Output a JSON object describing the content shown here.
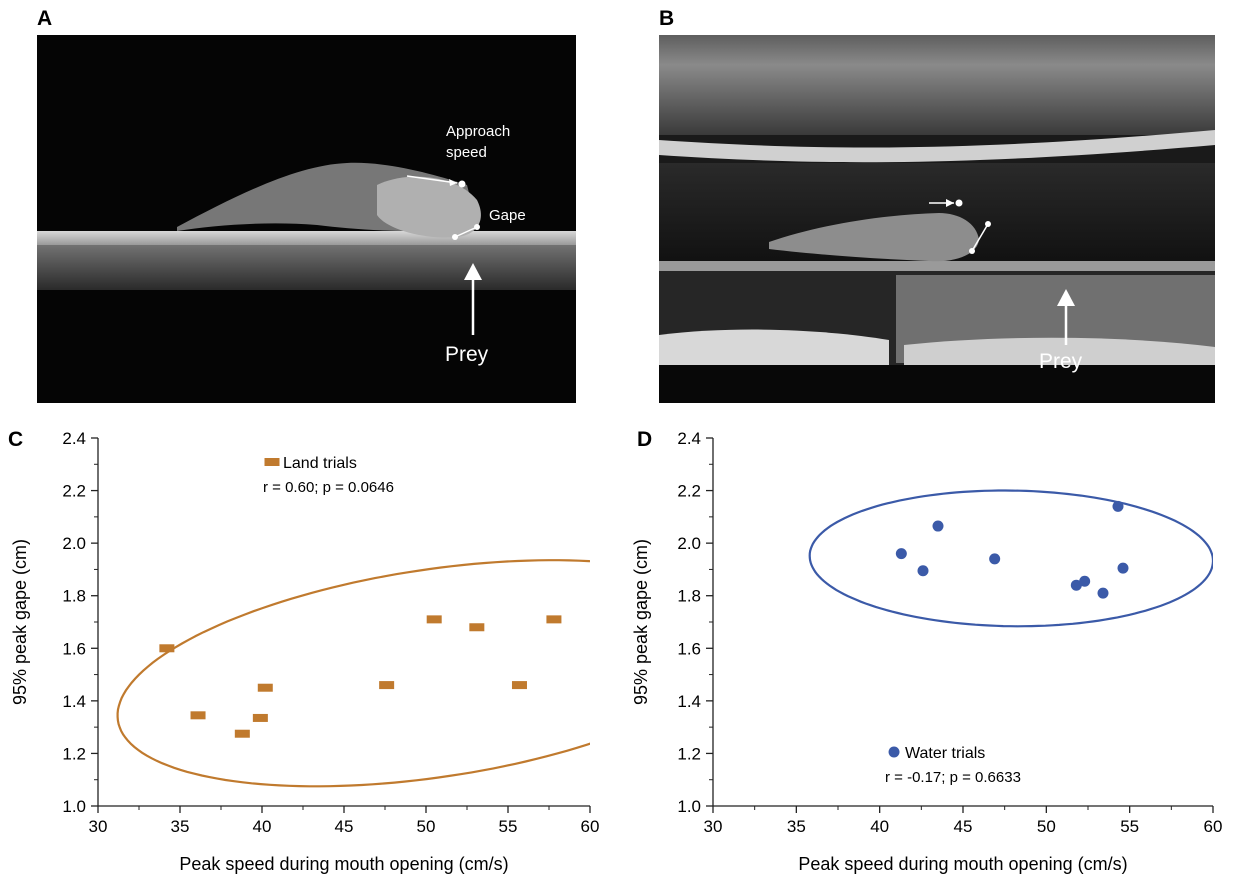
{
  "panels": {
    "a": {
      "letter": "A",
      "labels": {
        "approach": "Approach",
        "speed": "speed",
        "gape": "Gape",
        "prey": "Prey"
      }
    },
    "b": {
      "letter": "B",
      "labels": {
        "prey": "Prey"
      }
    }
  },
  "chart_data": [
    {
      "panel": "C",
      "type": "scatter",
      "xlabel": "Peak speed during mouth opening (cm/s)",
      "ylabel": "95% peak gape (cm)",
      "xlim": [
        30,
        60
      ],
      "ylim": [
        1.0,
        2.4
      ],
      "xticks": [
        "30",
        "35",
        "40",
        "45",
        "50",
        "55",
        "60"
      ],
      "yticks": [
        "1.0",
        "1.2",
        "1.4",
        "1.6",
        "1.8",
        "2.0",
        "2.2",
        "2.4"
      ],
      "grid": false,
      "legend_placement": "top-center",
      "color": "#c07a2e",
      "marker": "rectangle",
      "series": [
        {
          "name": "Land trials",
          "stats": "r = 0.60; p = 0.0646",
          "x": [
            34.2,
            36.1,
            38.8,
            39.9,
            40.2,
            47.6,
            50.5,
            53.1,
            55.7,
            57.8
          ],
          "y": [
            1.6,
            1.345,
            1.275,
            1.335,
            1.45,
            1.46,
            1.71,
            1.68,
            1.46,
            1.71
          ]
        }
      ],
      "ellipse": {
        "cx": 50.5,
        "cy": 1.505,
        "rx": 19.5,
        "ry": 0.395,
        "angle_deg": 8.5
      }
    },
    {
      "panel": "D",
      "type": "scatter",
      "xlabel": "Peak speed during mouth opening (cm/s)",
      "ylabel": "95% peak gape (cm)",
      "xlim": [
        30,
        60
      ],
      "ylim": [
        1.0,
        2.4
      ],
      "xticks": [
        "30",
        "35",
        "40",
        "45",
        "50",
        "55",
        "60"
      ],
      "yticks": [
        "1.0",
        "1.2",
        "1.4",
        "1.6",
        "1.8",
        "2.0",
        "2.2",
        "2.4"
      ],
      "grid": false,
      "legend_placement": "bottom-center",
      "color": "#3b5aa8",
      "marker": "circle",
      "series": [
        {
          "name": "Water trials",
          "stats": "r = -0.17; p = 0.6633",
          "x": [
            41.3,
            42.6,
            43.5,
            46.9,
            51.8,
            52.3,
            53.4,
            54.3,
            54.6
          ],
          "y": [
            1.96,
            1.895,
            2.065,
            1.94,
            1.84,
            1.855,
            1.81,
            2.14,
            1.905
          ]
        }
      ],
      "ellipse": {
        "cx": 47.9,
        "cy": 1.942,
        "rx": 12.1,
        "ry": 0.258,
        "angle_deg": -0.8
      }
    }
  ]
}
